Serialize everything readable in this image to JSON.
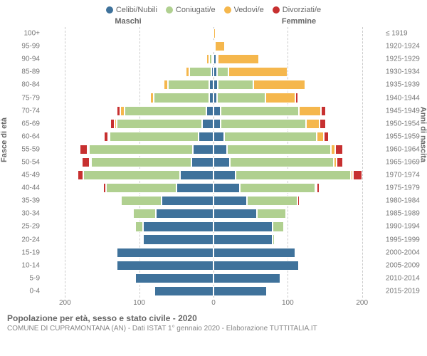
{
  "type": "population-pyramid",
  "legend": [
    {
      "label": "Celibi/Nubili",
      "color": "#3f729b"
    },
    {
      "label": "Coniugati/e",
      "color": "#b0d090"
    },
    {
      "label": "Vedovi/e",
      "color": "#f5b74d"
    },
    {
      "label": "Divorziati/e",
      "color": "#c73030"
    }
  ],
  "header_male": "Maschi",
  "header_female": "Femmine",
  "y_left_title": "Fasce di età",
  "y_right_title": "Anni di nascita",
  "x_ticks": [
    200,
    100,
    0,
    100,
    200
  ],
  "x_max": 230,
  "footer_title": "Popolazione per età, sesso e stato civile - 2020",
  "footer_sub": "COMUNE DI CUPRAMONTANA (AN) - Dati ISTAT 1° gennaio 2020 - Elaborazione TUTTITALIA.IT",
  "background_color": "#ffffff",
  "grid_color": "#cccccc",
  "text_color": "#666666",
  "rows": [
    {
      "age": "100+",
      "birth": "≤ 1919",
      "m": [
        0,
        0,
        0,
        0
      ],
      "f": [
        0,
        0,
        3,
        0
      ]
    },
    {
      "age": "95-99",
      "birth": "1920-1924",
      "m": [
        0,
        0,
        1,
        0
      ],
      "f": [
        2,
        0,
        13,
        0
      ]
    },
    {
      "age": "90-94",
      "birth": "1925-1929",
      "m": [
        2,
        4,
        4,
        0
      ],
      "f": [
        4,
        2,
        55,
        0
      ]
    },
    {
      "age": "85-89",
      "birth": "1930-1934",
      "m": [
        3,
        30,
        4,
        0
      ],
      "f": [
        5,
        15,
        80,
        0
      ]
    },
    {
      "age": "80-84",
      "birth": "1935-1939",
      "m": [
        6,
        55,
        6,
        0
      ],
      "f": [
        6,
        48,
        70,
        2
      ]
    },
    {
      "age": "75-79",
      "birth": "1940-1944",
      "m": [
        6,
        75,
        4,
        1
      ],
      "f": [
        5,
        65,
        40,
        4
      ]
    },
    {
      "age": "70-74",
      "birth": "1945-1949",
      "m": [
        10,
        110,
        6,
        4
      ],
      "f": [
        10,
        105,
        30,
        6
      ]
    },
    {
      "age": "65-69",
      "birth": "1950-1954",
      "m": [
        15,
        115,
        3,
        6
      ],
      "f": [
        10,
        115,
        18,
        8
      ]
    },
    {
      "age": "60-64",
      "birth": "1955-1959",
      "m": [
        20,
        120,
        2,
        6
      ],
      "f": [
        14,
        125,
        10,
        6
      ]
    },
    {
      "age": "55-59",
      "birth": "1960-1964",
      "m": [
        28,
        140,
        1,
        10
      ],
      "f": [
        18,
        140,
        6,
        10
      ]
    },
    {
      "age": "50-54",
      "birth": "1965-1969",
      "m": [
        30,
        135,
        1,
        10
      ],
      "f": [
        22,
        140,
        4,
        8
      ]
    },
    {
      "age": "45-49",
      "birth": "1970-1974",
      "m": [
        45,
        130,
        0,
        8
      ],
      "f": [
        30,
        155,
        3,
        12
      ]
    },
    {
      "age": "40-44",
      "birth": "1975-1979",
      "m": [
        50,
        95,
        0,
        4
      ],
      "f": [
        35,
        102,
        1,
        4
      ]
    },
    {
      "age": "35-39",
      "birth": "1980-1984",
      "m": [
        70,
        55,
        0,
        2
      ],
      "f": [
        45,
        68,
        0,
        3
      ]
    },
    {
      "age": "30-34",
      "birth": "1985-1989",
      "m": [
        78,
        30,
        0,
        1
      ],
      "f": [
        58,
        40,
        0,
        2
      ]
    },
    {
      "age": "25-29",
      "birth": "1990-1994",
      "m": [
        95,
        10,
        0,
        0
      ],
      "f": [
        80,
        15,
        0,
        0
      ]
    },
    {
      "age": "20-24",
      "birth": "1995-1999",
      "m": [
        95,
        2,
        0,
        0
      ],
      "f": [
        80,
        2,
        0,
        0
      ]
    },
    {
      "age": "15-19",
      "birth": "2000-2004",
      "m": [
        130,
        0,
        0,
        0
      ],
      "f": [
        110,
        0,
        0,
        0
      ]
    },
    {
      "age": "10-14",
      "birth": "2005-2009",
      "m": [
        130,
        0,
        0,
        0
      ],
      "f": [
        115,
        0,
        0,
        0
      ]
    },
    {
      "age": "5-9",
      "birth": "2010-2014",
      "m": [
        105,
        0,
        0,
        0
      ],
      "f": [
        90,
        0,
        0,
        0
      ]
    },
    {
      "age": "0-4",
      "birth": "2015-2019",
      "m": [
        80,
        0,
        0,
        0
      ],
      "f": [
        72,
        0,
        0,
        0
      ]
    }
  ]
}
